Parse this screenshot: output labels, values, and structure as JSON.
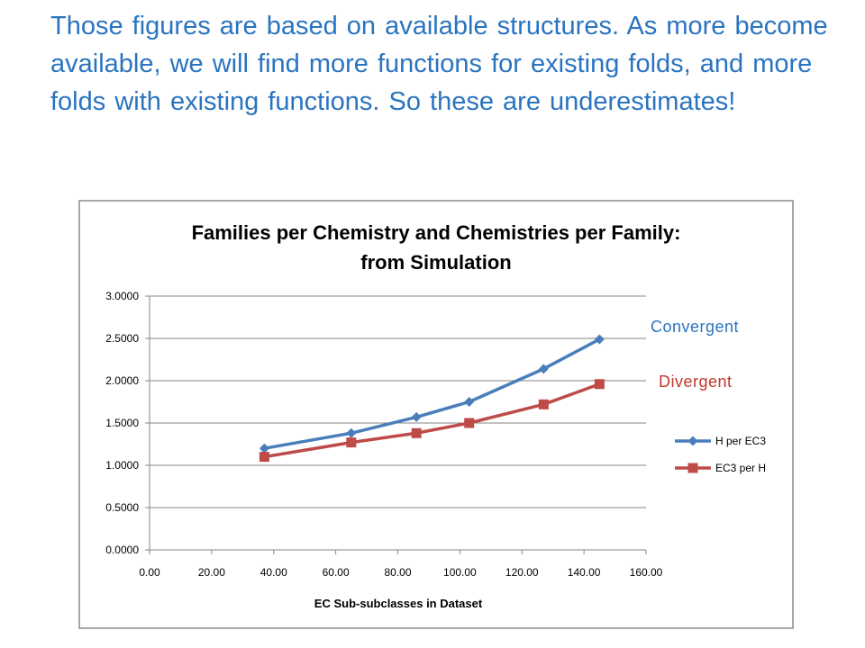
{
  "slide": {
    "heading": "Those figures are based on available structures.  As more become available, we will find more functions for existing folds, and more folds with existing functions.  So these are underestimates!",
    "annotations": {
      "convergent": "Convergent",
      "divergent": "Divergent"
    }
  },
  "chart_data": {
    "type": "line",
    "title": [
      "Families per Chemistry and Chemistries per Family:",
      "from Simulation"
    ],
    "xlabel": "EC Sub-subclasses in Dataset",
    "ylabel": "",
    "xlim": [
      0,
      160
    ],
    "ylim": [
      0,
      3
    ],
    "xticks": [
      "0.00",
      "20.00",
      "40.00",
      "60.00",
      "80.00",
      "100.00",
      "120.00",
      "140.00",
      "160.00"
    ],
    "yticks": [
      "0.0000",
      "0.5000",
      "1.0000",
      "1.5000",
      "2.0000",
      "2.5000",
      "3.0000"
    ],
    "grid": "horizontal",
    "legend_position": "right",
    "x": [
      37,
      65,
      86,
      103,
      127,
      145
    ],
    "series": [
      {
        "name": "H per EC3",
        "values": [
          1.2,
          1.38,
          1.57,
          1.75,
          2.14,
          2.49
        ],
        "color": "#4a7ebb",
        "marker": "diamond"
      },
      {
        "name": "EC3 per H",
        "values": [
          1.1,
          1.27,
          1.38,
          1.5,
          1.72,
          1.96
        ],
        "color": "#be4b48",
        "marker": "square"
      }
    ]
  }
}
